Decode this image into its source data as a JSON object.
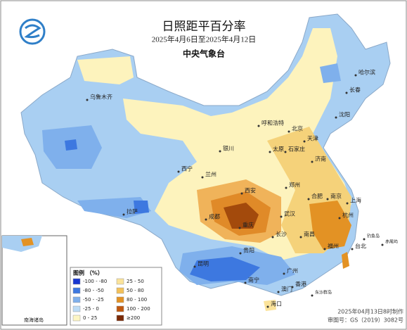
{
  "header": {
    "title": "日照距平百分率",
    "subtitle": "2025年4月6日至2025年4月12日",
    "agency": "中央气象台"
  },
  "cities": [
    "乌鲁木齐",
    "哈尔滨",
    "长春",
    "沈阳",
    "呼和浩特",
    "北京",
    "天津",
    "银川",
    "太原",
    "石家庄",
    "济南",
    "西宁",
    "兰州",
    "郑州",
    "西安",
    "合肥",
    "南京",
    "上海",
    "拉萨",
    "成都",
    "武汉",
    "杭州",
    "重庆",
    "长沙",
    "南昌",
    "福州",
    "台北",
    "贵阳",
    "昆明",
    "南宁",
    "广州",
    "香港",
    "澳门",
    "海口",
    "钓鱼岛",
    "赤尾屿",
    "东沙群岛"
  ],
  "legend": {
    "title": "图例 （%）",
    "items": [
      {
        "label": "-100 - -80",
        "color": "#1736d0"
      },
      {
        "label": "-80 - -50",
        "color": "#3d78e0"
      },
      {
        "label": "-50 - -25",
        "color": "#7fb0ec"
      },
      {
        "label": "-25 - 0",
        "color": "#bcdcf6"
      },
      {
        "label": "0 - 25",
        "color": "#fdf6c4"
      },
      {
        "label": "25 - 50",
        "color": "#fbe39a"
      },
      {
        "label": "50 - 80",
        "color": "#f3c15a"
      },
      {
        "label": "80 - 100",
        "color": "#e39224"
      },
      {
        "label": "100 - 200",
        "color": "#c0580f"
      },
      {
        "label": "≥200",
        "color": "#7a2906"
      }
    ]
  },
  "inset": {
    "label": "南海诸岛"
  },
  "footer": {
    "made": "2025年04月13日8时制作",
    "approval": "审图号：GS（2019）3082号"
  }
}
